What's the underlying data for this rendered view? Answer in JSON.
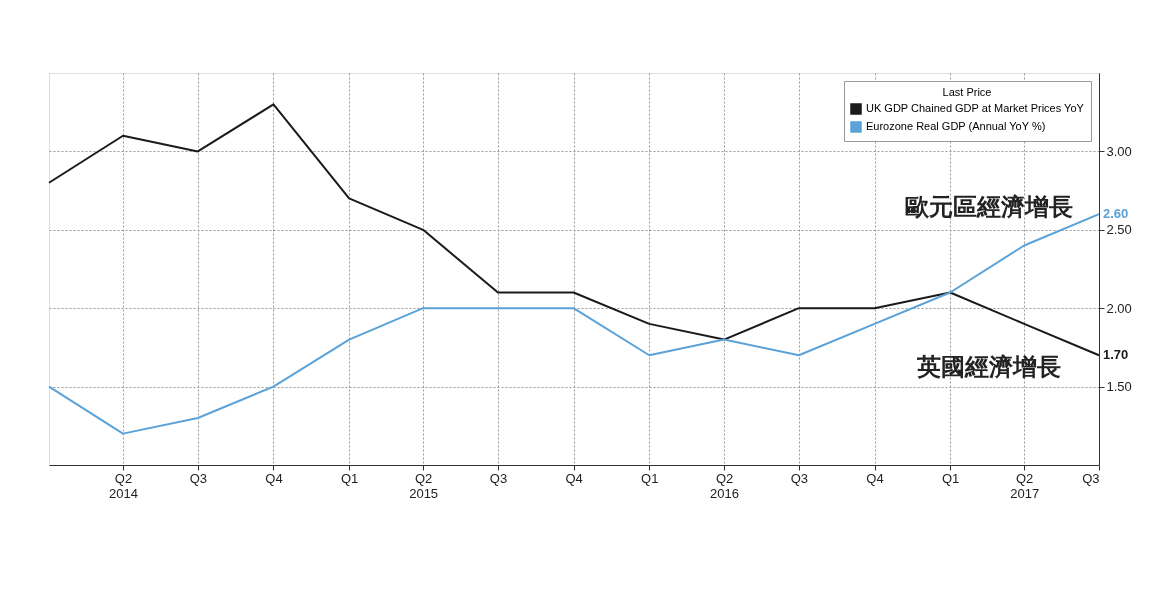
{
  "chart_data": {
    "type": "line",
    "x": [
      "2014-01",
      "2014-04",
      "2014-07",
      "2014-10",
      "2015-01",
      "2015-04",
      "2015-07",
      "2015-10",
      "2016-01",
      "2016-04",
      "2016-07",
      "2016-10",
      "2017-01",
      "2017-04",
      "2017-07"
    ],
    "series": [
      {
        "name": "UK GDP Chained GDP at Market Prices YoY",
        "color": "#1a1a1a",
        "values": [
          2.8,
          3.1,
          3.0,
          3.3,
          2.7,
          2.5,
          2.1,
          2.1,
          1.9,
          1.8,
          2.0,
          2.0,
          2.1,
          1.9,
          1.7
        ],
        "value_labels": [
          null,
          null,
          null,
          null,
          null,
          null,
          null,
          null,
          null,
          null,
          null,
          null,
          null,
          null,
          "1.70"
        ]
      },
      {
        "name": "Eurozone Real GDP (Annual YoY %)",
        "color": "#5aa2d8",
        "values": [
          1.5,
          1.2,
          1.3,
          1.5,
          1.8,
          2.0,
          2.0,
          2.0,
          1.7,
          1.8,
          1.7,
          1.9,
          2.1,
          2.4,
          2.6
        ],
        "value_labels": [
          null,
          null,
          null,
          null,
          null,
          null,
          null,
          null,
          null,
          null,
          null,
          null,
          null,
          null,
          "2.60"
        ]
      }
    ],
    "legend_title": "Last Price",
    "legend": "top right",
    "xlim": [
      "2014-01",
      "2017-07"
    ],
    "xticks": [
      {
        "value": "2014-04",
        "label": "Q2\n2014"
      },
      {
        "value": "2014-07",
        "label": "Q3"
      },
      {
        "value": "2014-10",
        "label": "Q4"
      },
      {
        "value": "2015-01",
        "label": "Q1"
      },
      {
        "value": "2015-04",
        "label": "Q2\n2015"
      },
      {
        "value": "2015-07",
        "label": "Q3"
      },
      {
        "value": "2015-10",
        "label": "Q4"
      },
      {
        "value": "2016-01",
        "label": "Q1"
      },
      {
        "value": "2016-04",
        "label": "Q2\n2016"
      },
      {
        "value": "2016-07",
        "label": "Q3"
      },
      {
        "value": "2016-10",
        "label": "Q4"
      },
      {
        "value": "2017-01",
        "label": "Q1"
      },
      {
        "value": "2017-04",
        "label": "Q2\n2017"
      },
      {
        "value": "2017-07",
        "label": "Q3"
      }
    ],
    "ylim": [
      1.0,
      3.5
    ],
    "yticks": [
      {
        "value": 1.5,
        "label": "1.50"
      },
      {
        "value": 2.0,
        "label": "2.00"
      },
      {
        "value": 2.5,
        "label": "2.50"
      },
      {
        "value": 3.0,
        "label": "3.00"
      }
    ],
    "grid": true,
    "line_style": "solid",
    "marker": "none",
    "annotations": [
      "歐元區經濟增長",
      "英國經濟增長"
    ]
  }
}
